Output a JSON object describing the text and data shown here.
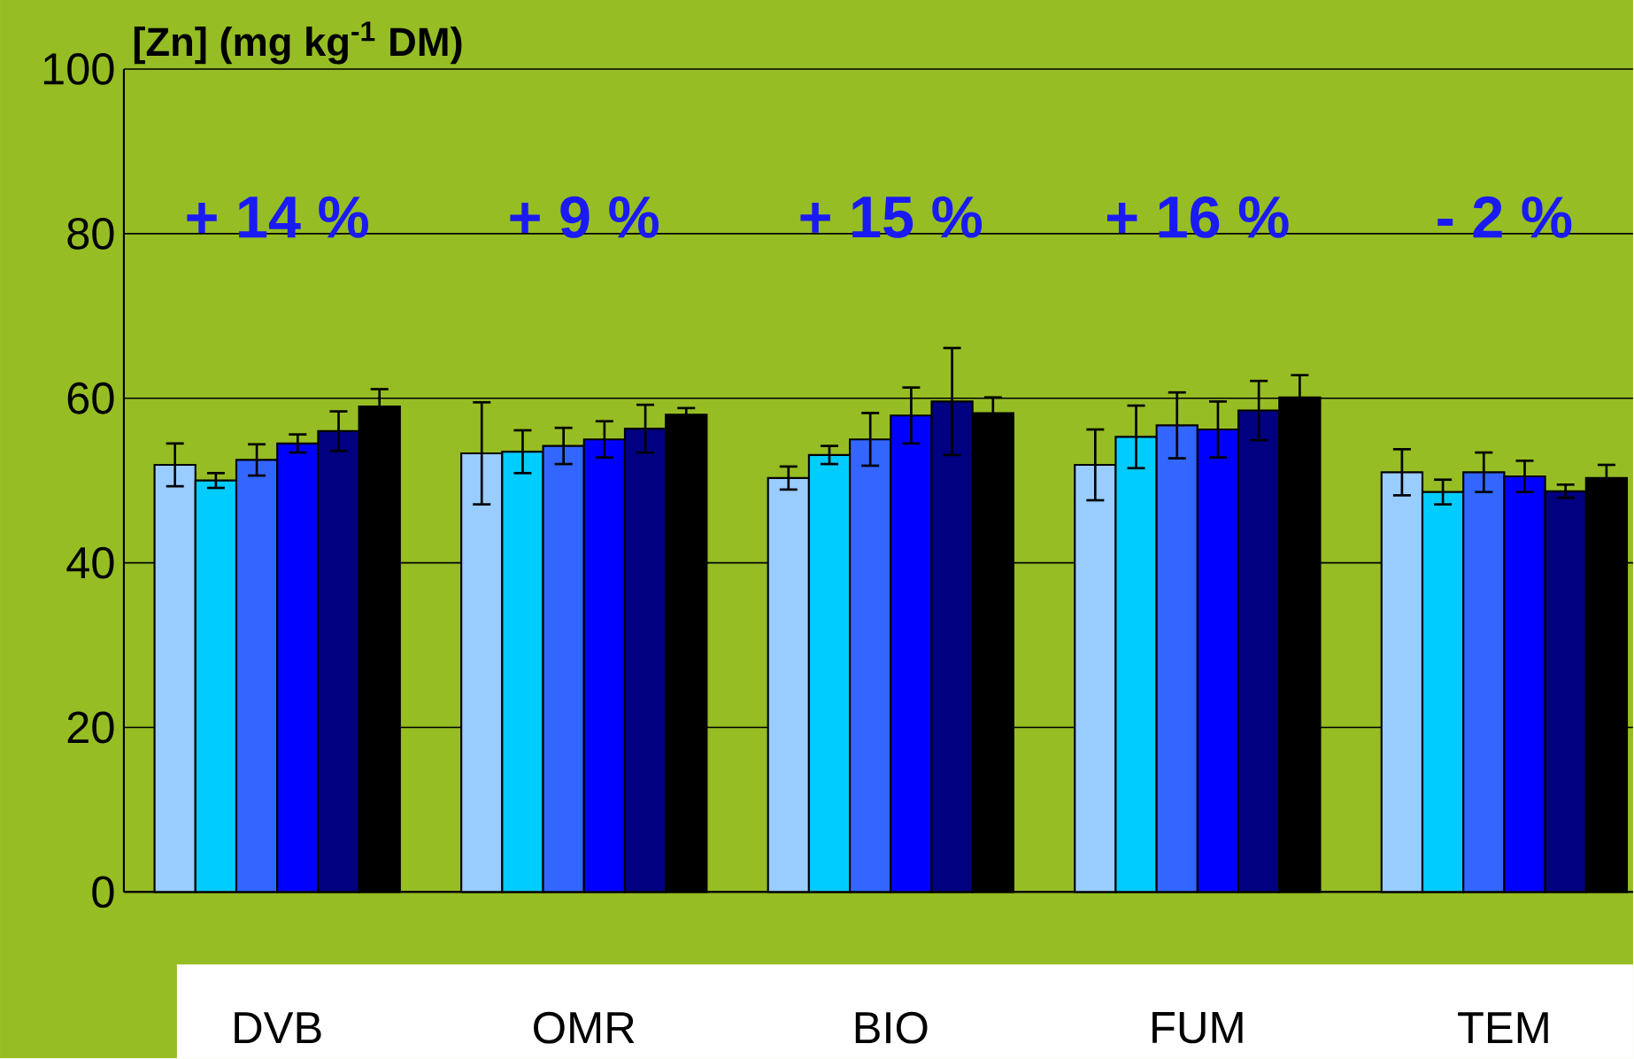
{
  "chart_data": {
    "type": "bar",
    "ylabel": "[Zn] (mg kg$^{-1}$ DM)",
    "categories": [
      "DVB",
      "OMR",
      "BIO",
      "FUM",
      "TEM"
    ],
    "series": [
      {
        "color": "#99ccff",
        "values": [
          51.9,
          53.3,
          50.3,
          51.9,
          51.0
        ],
        "errors": [
          2.6,
          6.2,
          1.4,
          4.3,
          2.8
        ]
      },
      {
        "color": "#00ccff",
        "values": [
          50.0,
          53.5,
          53.1,
          55.3,
          48.6
        ],
        "errors": [
          0.9,
          2.6,
          1.1,
          3.8,
          1.5
        ]
      },
      {
        "color": "#3366ff",
        "values": [
          52.5,
          54.2,
          55.0,
          56.7,
          51.0
        ],
        "errors": [
          1.9,
          2.2,
          3.2,
          4.0,
          2.4
        ]
      },
      {
        "color": "#0000ff",
        "values": [
          54.5,
          55.0,
          57.9,
          56.2,
          50.5
        ],
        "errors": [
          1.1,
          2.2,
          3.4,
          3.4,
          1.9
        ]
      },
      {
        "color": "#000080",
        "values": [
          56.0,
          56.3,
          59.6,
          58.5,
          48.7
        ],
        "errors": [
          2.4,
          2.9,
          6.5,
          3.6,
          0.8
        ]
      },
      {
        "color": "#000000",
        "values": [
          59.0,
          58.0,
          58.2,
          60.1,
          50.3
        ],
        "errors": [
          2.1,
          0.8,
          1.9,
          2.7,
          1.6
        ]
      }
    ],
    "annotations": [
      "+ 14 %",
      "+ 9 %",
      "+ 15 %",
      "+ 16 %",
      "- 2 %"
    ],
    "ylim": [
      0,
      100
    ],
    "yticks": [
      0,
      20,
      40,
      60,
      80,
      100
    ],
    "grid": "y"
  }
}
